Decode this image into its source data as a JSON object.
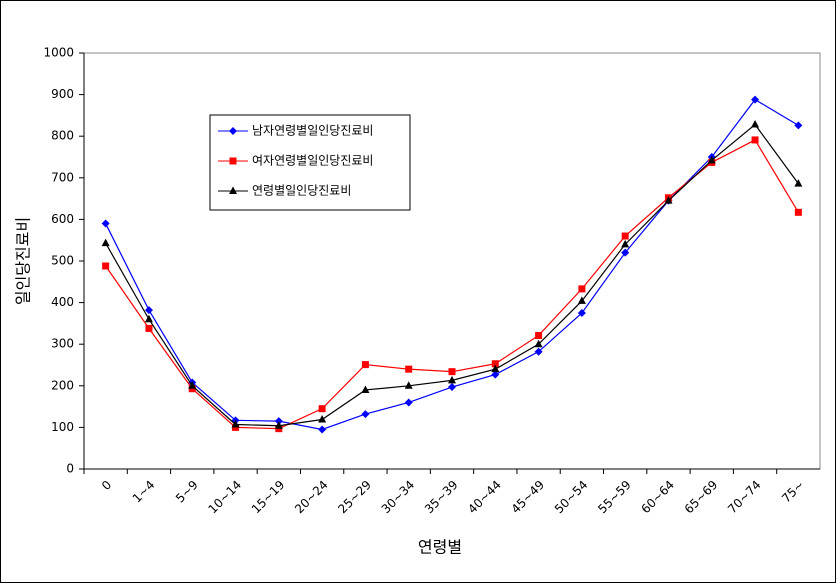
{
  "chart_data": {
    "type": "line",
    "x_label": "연령별",
    "y_label": "일인당진료비",
    "categories": [
      "0",
      "1~4",
      "5~9",
      "10~14",
      "15~19",
      "20~24",
      "25~29",
      "30~34",
      "35~39",
      "40~44",
      "45~49",
      "50~54",
      "55~59",
      "60~64",
      "65~69",
      "70~74",
      "75~"
    ],
    "series": [
      {
        "name": "남자연령별일인당진료비",
        "color": "#0000ff",
        "marker": "diamond",
        "values": [
          590,
          382,
          208,
          117,
          115,
          95,
          132,
          160,
          197,
          227,
          282,
          375,
          520,
          645,
          750,
          888,
          826
        ]
      },
      {
        "name": "여자연령별일인당진료비",
        "color": "#ff0000",
        "marker": "square",
        "values": [
          488,
          338,
          193,
          100,
          97,
          145,
          251,
          240,
          234,
          253,
          321,
          433,
          560,
          652,
          737,
          791,
          617
        ]
      },
      {
        "name": "연령별일인당진료비",
        "color": "#000000",
        "marker": "triangle",
        "values": [
          543,
          360,
          200,
          107,
          104,
          119,
          190,
          200,
          213,
          240,
          300,
          404,
          540,
          645,
          742,
          828,
          686
        ]
      }
    ],
    "ylim": [
      0,
      1000
    ],
    "yticks": [
      0,
      100,
      200,
      300,
      400,
      500,
      600,
      700,
      800,
      900,
      1000
    ],
    "grid": false,
    "legend": "upper-left"
  }
}
